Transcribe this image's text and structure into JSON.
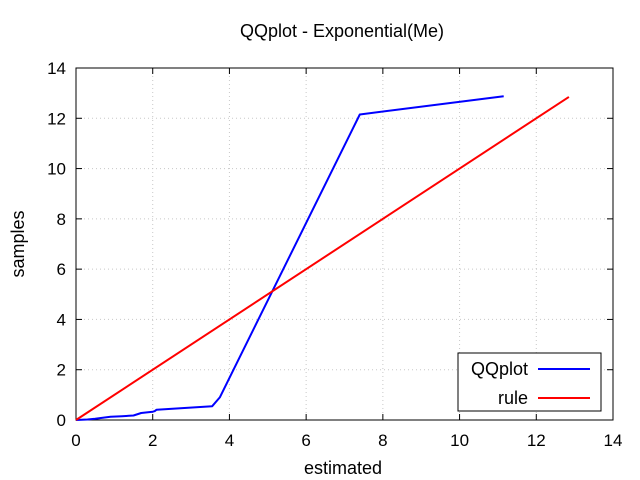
{
  "chart_data": {
    "type": "line",
    "title": "QQplot - Exponential(Me)",
    "xlabel": "estimated",
    "ylabel": "samples",
    "xlim": [
      0,
      14
    ],
    "ylim": [
      0,
      14
    ],
    "xticks": [
      "0",
      "2",
      "4",
      "6",
      "8",
      "10",
      "12",
      "14"
    ],
    "yticks": [
      "0",
      "2",
      "4",
      "6",
      "8",
      "10",
      "12",
      "14"
    ],
    "grid": true,
    "legend_position": "bottom-right",
    "series": [
      {
        "name": "QQplot",
        "color": "#0000ff",
        "x": [
          0,
          0.3,
          0.5,
          0.7,
          0.9,
          1.2,
          1.5,
          1.7,
          2.0,
          2.05,
          2.1,
          3.55,
          3.75,
          7.4,
          11.15
        ],
        "y": [
          0,
          0.02,
          0.05,
          0.09,
          0.13,
          0.15,
          0.18,
          0.28,
          0.33,
          0.35,
          0.41,
          0.55,
          0.9,
          12.15,
          12.88
        ]
      },
      {
        "name": "rule",
        "color": "#ff0000",
        "x": [
          0,
          12.85
        ],
        "y": [
          0,
          12.85
        ]
      }
    ]
  }
}
